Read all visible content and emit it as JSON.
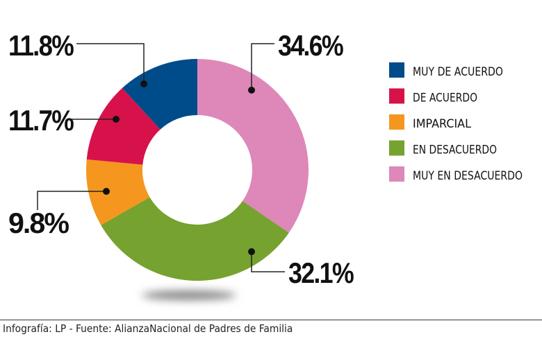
{
  "chart_data": {
    "type": "pie",
    "subtype": "donut",
    "start": "top, clockwise",
    "categories": [
      "MUY EN DESACUERDO",
      "EN DESACUERDO",
      "IMPARCIAL",
      "DE ACUERDO",
      "MUY DE ACUERDO"
    ],
    "values": [
      34.6,
      32.1,
      9.8,
      11.7,
      11.8
    ],
    "labels": [
      "34.6%",
      "32.1%",
      "9.8%",
      "11.7%",
      "11.8%"
    ],
    "colors": [
      "#de87b9",
      "#76a22f",
      "#f5961f",
      "#d7124a",
      "#004b8a"
    ],
    "legend": {
      "placement": "right",
      "items": [
        {
          "label": "MUY DE ACUERDO",
          "color": "#004b8a"
        },
        {
          "label": "DE ACUERDO",
          "color": "#d7124a"
        },
        {
          "label": "IMPARCIAL",
          "color": "#f5961f"
        },
        {
          "label": "EN DESACUERDO",
          "color": "#76a22f"
        },
        {
          "label": "MUY EN DESACUERDO",
          "color": "#de87b9"
        }
      ]
    }
  },
  "footer": "Infografía: LP - Fuente: AlianzaNacional de Padres de Familia"
}
